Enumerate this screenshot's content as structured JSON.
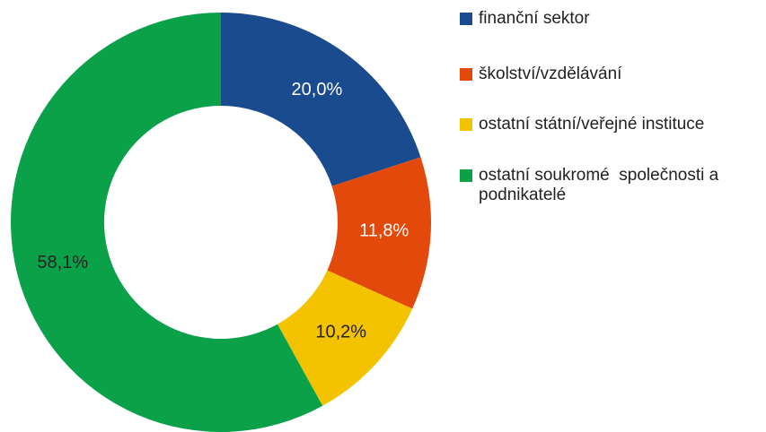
{
  "chart_data": {
    "type": "pie",
    "categories": [
      "finanční sektor",
      "školství/vzdělávání",
      "ostatní státní/veřejné instituce",
      "ostatní soukromé  společnosti a podnikatelé"
    ],
    "values": [
      20.0,
      11.8,
      10.2,
      58.1
    ],
    "value_labels": [
      "20,0%",
      "11,8%",
      "10,2%",
      "58,1%"
    ],
    "colors": [
      "#1b4b8f",
      "#e2490b",
      "#f3c300",
      "#0ba149"
    ],
    "legend": "right"
  }
}
